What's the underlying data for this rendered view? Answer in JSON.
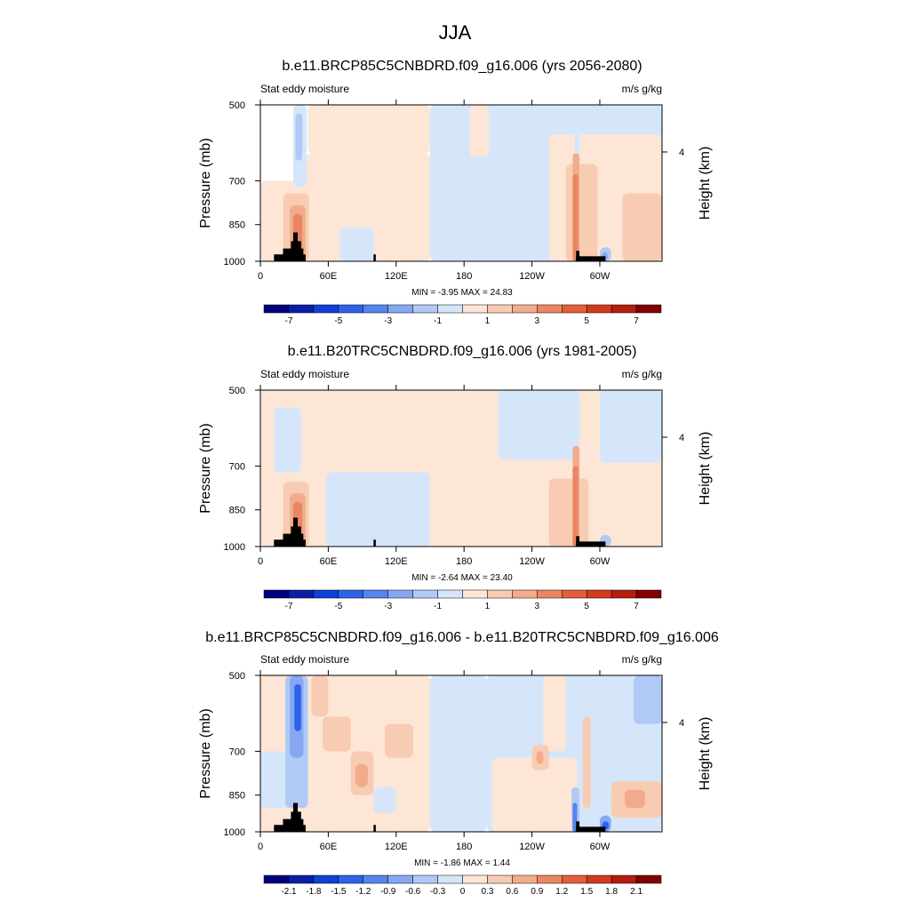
{
  "figure_title": "JJA",
  "colors": {
    "background": "#ffffff",
    "terrain": "#000000",
    "neg_palette": [
      "#00007f",
      "#0a1fa8",
      "#1140d6",
      "#2c63e8",
      "#5585ee",
      "#86a8f2",
      "#b0c9f6",
      "#d5e6fa"
    ],
    "pos_palette": [
      "#fde6d6",
      "#f8ccb2",
      "#f2ac8c",
      "#eb8662",
      "#e25f3a",
      "#d33a1d",
      "#b51d0e",
      "#820000"
    ]
  },
  "chart_data": [
    {
      "type": "heatmap",
      "title": "b.e11.BRCP85C5CNBDRD.f09_g16.006 (yrs 2056-2080)",
      "left_label": "Stat eddy moisture",
      "right_label": "m/s g/kg",
      "ylabel": "Pressure (mb)",
      "ylabel_right": "Height (km)",
      "x_ticks": [
        "0",
        "60E",
        "120E",
        "180",
        "120W",
        "60W"
      ],
      "x_tick_lons": [
        0,
        60,
        120,
        180,
        240,
        300
      ],
      "xlim": [
        0,
        355
      ],
      "y_ticks": [
        "500",
        "700",
        "850",
        "1000"
      ],
      "y_tick_values": [
        500,
        700,
        850,
        1000
      ],
      "ylim": [
        500,
        1000
      ],
      "y_right_ticks": [
        "4"
      ],
      "y_right_tick_values": [
        4
      ],
      "stats": "MIN =  -3.95  MAX =  24.83",
      "colorbar_labels": [
        "-7",
        "-5",
        "-3",
        "-1",
        "1",
        "3",
        "5",
        "7"
      ],
      "colorbar_scale": "full",
      "features": [
        {
          "lon0": 0,
          "lon1": 42,
          "p0": 700,
          "p1": 1000,
          "v": 1
        },
        {
          "lon0": 42,
          "lon1": 150,
          "p0": 500,
          "p1": 620,
          "v": 1
        },
        {
          "lon0": 40,
          "lon1": 150,
          "p0": 620,
          "p1": 1000,
          "v": 1
        },
        {
          "lon0": 150,
          "lon1": 355,
          "p0": 500,
          "p1": 1000,
          "v": -1
        },
        {
          "lon0": 185,
          "lon1": 202,
          "p0": 500,
          "p1": 630,
          "v": 1
        },
        {
          "lon0": 255,
          "lon1": 355,
          "p0": 570,
          "p1": 1000,
          "v": 1
        },
        {
          "lon0": 270,
          "lon1": 298,
          "p0": 650,
          "p1": 1000,
          "v": 3
        },
        {
          "lon0": 320,
          "lon1": 355,
          "p0": 740,
          "p1": 1000,
          "v": 3
        },
        {
          "lon0": 29,
          "lon1": 41,
          "p0": 500,
          "p1": 720,
          "v": -1
        },
        {
          "lon0": 31,
          "lon1": 37,
          "p0": 520,
          "p1": 640,
          "v": -3
        },
        {
          "lon0": 20,
          "lon1": 43,
          "p0": 740,
          "p1": 1000,
          "v": 3
        },
        {
          "lon0": 26,
          "lon1": 40,
          "p0": 780,
          "p1": 1000,
          "v": 5
        },
        {
          "lon0": 29,
          "lon1": 37,
          "p0": 810,
          "p1": 1000,
          "v": 7
        },
        {
          "lon0": 70,
          "lon1": 100,
          "p0": 860,
          "p1": 1000,
          "v": -1
        },
        {
          "lon0": 278,
          "lon1": 282,
          "p0": 500,
          "p1": 700,
          "v": -1
        },
        {
          "lon0": 276,
          "lon1": 282,
          "p0": 620,
          "p1": 1000,
          "v": 5
        },
        {
          "lon0": 276,
          "lon1": 281,
          "p0": 680,
          "p1": 1000,
          "v": 7
        },
        {
          "lon0": 300,
          "lon1": 310,
          "p0": 940,
          "p1": 1000,
          "v": -3
        },
        {
          "lon0": 302,
          "lon1": 307,
          "p0": 960,
          "p1": 995,
          "v": -5
        }
      ],
      "terrain": [
        {
          "lon0": 12,
          "lon1": 40,
          "p": 970
        },
        {
          "lon0": 20,
          "lon1": 38,
          "p": 945
        },
        {
          "lon0": 27,
          "lon1": 36,
          "p": 915
        },
        {
          "lon0": 29,
          "lon1": 33,
          "p": 880
        },
        {
          "lon0": 100,
          "lon1": 102,
          "p": 970
        },
        {
          "lon0": 279,
          "lon1": 305,
          "p": 978
        },
        {
          "lon0": 279,
          "lon1": 282,
          "p": 955
        }
      ]
    },
    {
      "type": "heatmap",
      "title": "b.e11.B20TRC5CNBDRD.f09_g16.006 (yrs 1981-2005)",
      "left_label": "Stat eddy moisture",
      "right_label": "m/s g/kg",
      "ylabel": "Pressure (mb)",
      "ylabel_right": "Height (km)",
      "x_ticks": [
        "0",
        "60E",
        "120E",
        "180",
        "120W",
        "60W"
      ],
      "x_tick_lons": [
        0,
        60,
        120,
        180,
        240,
        300
      ],
      "xlim": [
        0,
        355
      ],
      "y_ticks": [
        "500",
        "700",
        "850",
        "1000"
      ],
      "y_tick_values": [
        500,
        700,
        850,
        1000
      ],
      "ylim": [
        500,
        1000
      ],
      "y_right_ticks": [
        "4"
      ],
      "y_right_tick_values": [
        4
      ],
      "stats": "MIN =  -2.64  MAX =  23.40",
      "colorbar_labels": [
        "-7",
        "-5",
        "-3",
        "-1",
        "1",
        "3",
        "5",
        "7"
      ],
      "colorbar_scale": "full",
      "features": [
        {
          "lon0": 0,
          "lon1": 355,
          "p0": 500,
          "p1": 1000,
          "v": 1
        },
        {
          "lon0": 12,
          "lon1": 36,
          "p0": 540,
          "p1": 720,
          "v": -1
        },
        {
          "lon0": 58,
          "lon1": 150,
          "p0": 720,
          "p1": 1000,
          "v": -1
        },
        {
          "lon0": 210,
          "lon1": 282,
          "p0": 500,
          "p1": 680,
          "v": -1
        },
        {
          "lon0": 300,
          "lon1": 355,
          "p0": 500,
          "p1": 690,
          "v": -1
        },
        {
          "lon0": 255,
          "lon1": 290,
          "p0": 740,
          "p1": 1000,
          "v": 3
        },
        {
          "lon0": 20,
          "lon1": 43,
          "p0": 750,
          "p1": 1000,
          "v": 3
        },
        {
          "lon0": 26,
          "lon1": 40,
          "p0": 790,
          "p1": 1000,
          "v": 5
        },
        {
          "lon0": 29,
          "lon1": 37,
          "p0": 820,
          "p1": 1000,
          "v": 7
        },
        {
          "lon0": 277,
          "lon1": 282,
          "p0": 500,
          "p1": 640,
          "v": -1
        },
        {
          "lon0": 276,
          "lon1": 282,
          "p0": 640,
          "p1": 1000,
          "v": 5
        },
        {
          "lon0": 276,
          "lon1": 281,
          "p0": 700,
          "p1": 1000,
          "v": 7
        },
        {
          "lon0": 300,
          "lon1": 310,
          "p0": 950,
          "p1": 1000,
          "v": -3
        }
      ],
      "terrain": [
        {
          "lon0": 12,
          "lon1": 40,
          "p": 970
        },
        {
          "lon0": 20,
          "lon1": 38,
          "p": 945
        },
        {
          "lon0": 27,
          "lon1": 36,
          "p": 915
        },
        {
          "lon0": 29,
          "lon1": 33,
          "p": 880
        },
        {
          "lon0": 100,
          "lon1": 102,
          "p": 970
        },
        {
          "lon0": 279,
          "lon1": 305,
          "p": 978
        },
        {
          "lon0": 279,
          "lon1": 282,
          "p": 955
        }
      ]
    },
    {
      "type": "heatmap",
      "title": "b.e11.BRCP85C5CNBDRD.f09_g16.006 - b.e11.B20TRC5CNBDRD.f09_g16.006",
      "left_label": "Stat eddy moisture",
      "right_label": "m/s g/kg",
      "ylabel": "Pressure (mb)",
      "ylabel_right": "Height (km)",
      "x_ticks": [
        "0",
        "60E",
        "120E",
        "180",
        "120W",
        "60W"
      ],
      "x_tick_lons": [
        0,
        60,
        120,
        180,
        240,
        300
      ],
      "xlim": [
        0,
        355
      ],
      "y_ticks": [
        "500",
        "700",
        "850",
        "1000"
      ],
      "y_tick_values": [
        500,
        700,
        850,
        1000
      ],
      "ylim": [
        500,
        1000
      ],
      "y_right_ticks": [
        "4"
      ],
      "y_right_tick_values": [
        4
      ],
      "stats": "MIN =  -1.86  MAX =   1.44",
      "colorbar_labels": [
        "-2.1",
        "-1.8",
        "-1.5",
        "-1.2",
        "-0.9",
        "-0.6",
        "-0.3",
        "0",
        "0.3",
        "0.6",
        "0.9",
        "1.2",
        "1.5",
        "1.8",
        "2.1"
      ],
      "colorbar_scale": "diff",
      "features": [
        {
          "lon0": 0,
          "lon1": 150,
          "p0": 500,
          "p1": 1000,
          "v": 0.15
        },
        {
          "lon0": 150,
          "lon1": 200,
          "p0": 500,
          "p1": 1000,
          "v": -0.15
        },
        {
          "lon0": 200,
          "lon1": 355,
          "p0": 500,
          "p1": 1000,
          "v": -0.15
        },
        {
          "lon0": 205,
          "lon1": 280,
          "p0": 720,
          "p1": 1000,
          "v": 0.15
        },
        {
          "lon0": 250,
          "lon1": 270,
          "p0": 500,
          "p1": 700,
          "v": 0.15
        },
        {
          "lon0": 0,
          "lon1": 30,
          "p0": 700,
          "p1": 900,
          "v": -0.15
        },
        {
          "lon0": 22,
          "lon1": 42,
          "p0": 500,
          "p1": 900,
          "v": -0.45
        },
        {
          "lon0": 26,
          "lon1": 38,
          "p0": 500,
          "p1": 720,
          "v": -0.75
        },
        {
          "lon0": 30,
          "lon1": 36,
          "p0": 520,
          "p1": 640,
          "v": -1.35
        },
        {
          "lon0": 45,
          "lon1": 60,
          "p0": 500,
          "p1": 600,
          "v": 0.45
        },
        {
          "lon0": 55,
          "lon1": 80,
          "p0": 600,
          "p1": 700,
          "v": 0.45
        },
        {
          "lon0": 80,
          "lon1": 100,
          "p0": 700,
          "p1": 850,
          "v": 0.45
        },
        {
          "lon0": 84,
          "lon1": 95,
          "p0": 740,
          "p1": 820,
          "v": 0.75
        },
        {
          "lon0": 110,
          "lon1": 135,
          "p0": 620,
          "p1": 720,
          "v": 0.45
        },
        {
          "lon0": 100,
          "lon1": 120,
          "p0": 820,
          "p1": 920,
          "v": -0.15
        },
        {
          "lon0": 240,
          "lon1": 255,
          "p0": 680,
          "p1": 760,
          "v": 0.45
        },
        {
          "lon0": 244,
          "lon1": 250,
          "p0": 700,
          "p1": 740,
          "v": 0.75
        },
        {
          "lon0": 330,
          "lon1": 355,
          "p0": 500,
          "p1": 620,
          "v": -0.45
        },
        {
          "lon0": 310,
          "lon1": 355,
          "p0": 800,
          "p1": 940,
          "v": 0.45
        },
        {
          "lon0": 322,
          "lon1": 340,
          "p0": 830,
          "p1": 900,
          "v": 0.75
        },
        {
          "lon0": 275,
          "lon1": 282,
          "p0": 820,
          "p1": 1000,
          "v": -0.45
        },
        {
          "lon0": 276,
          "lon1": 280,
          "p0": 880,
          "p1": 1000,
          "v": -1.05
        },
        {
          "lon0": 285,
          "lon1": 292,
          "p0": 600,
          "p1": 900,
          "v": 0.45
        },
        {
          "lon0": 300,
          "lon1": 310,
          "p0": 930,
          "p1": 1000,
          "v": -0.75
        },
        {
          "lon0": 302,
          "lon1": 308,
          "p0": 955,
          "p1": 990,
          "v": -1.35
        }
      ],
      "terrain": [
        {
          "lon0": 12,
          "lon1": 40,
          "p": 970
        },
        {
          "lon0": 20,
          "lon1": 38,
          "p": 945
        },
        {
          "lon0": 27,
          "lon1": 36,
          "p": 915
        },
        {
          "lon0": 29,
          "lon1": 33,
          "p": 880
        },
        {
          "lon0": 100,
          "lon1": 102,
          "p": 970
        },
        {
          "lon0": 279,
          "lon1": 305,
          "p": 978
        },
        {
          "lon0": 279,
          "lon1": 282,
          "p": 955
        }
      ]
    }
  ]
}
